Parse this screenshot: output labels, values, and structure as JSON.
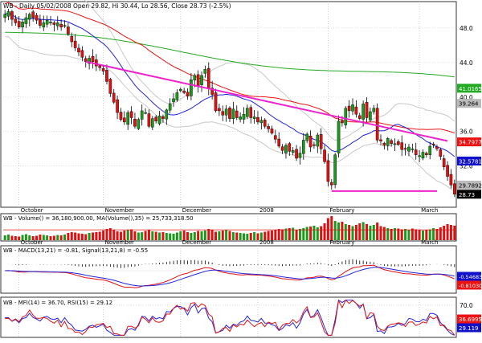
{
  "header": {
    "symbol": "WB",
    "line": "WB - Daily 05/02/2008 Open 29.82, Hi 30.44, Lo 28.56, Close 28.73 (-2.5%)"
  },
  "chart_data": [
    {
      "type": "candlestick",
      "panel": "price",
      "x_labels": [
        "October",
        "November",
        "December",
        "2008",
        "February",
        "March"
      ],
      "ylim": [
        27.5,
        50.5
      ],
      "y_ticks": [
        32.0,
        36.0,
        40.0,
        44.0,
        48.0
      ],
      "y_tick_labels": [
        "32.0",
        "36.0",
        "40.0",
        "44.0",
        "48.0"
      ],
      "last_values": [
        {
          "label": "41.0165",
          "value": 41.0165,
          "color": "#22aa22"
        },
        {
          "label": "39.264",
          "value": 39.264,
          "color": "#bbbbbb"
        },
        {
          "label": "34.7977",
          "value": 34.7977,
          "color": "#ee1111"
        },
        {
          "label": "32.5781",
          "value": 32.5781,
          "color": "#1111cc"
        },
        {
          "label": "29.7892",
          "value": 29.7892,
          "color": "#bbbbbb"
        },
        {
          "label": "28.73",
          "value": 28.73,
          "color": "#000000"
        }
      ],
      "closes": [
        49.6,
        49.9,
        49.0,
        48.6,
        48.1,
        48.7,
        49.2,
        49.6,
        49.2,
        48.9,
        48.3,
        48.6,
        48.9,
        48.7,
        48.4,
        48.6,
        48.1,
        48.3,
        47.3,
        46.4,
        45.7,
        45.2,
        44.6,
        44.1,
        44.5,
        44.1,
        43.6,
        43.4,
        43.0,
        41.8,
        40.4,
        39.4,
        38.2,
        37.4,
        37.1,
        38.2,
        37.6,
        36.6,
        37.4,
        38.4,
        38.2,
        36.6,
        37.5,
        37.2,
        37.8,
        37.5,
        38.5,
        39.2,
        39.8,
        40.5,
        40.9,
        40.5,
        40.1,
        42.0,
        42.5,
        41.3,
        42.5,
        43.2,
        41.0,
        40.3,
        38.4,
        38.4,
        37.9,
        38.6,
        37.5,
        38.6,
        37.6,
        37.7,
        38.0,
        38.7,
        37.6,
        37.7,
        37.1,
        37.3,
        36.6,
        36.3,
        35.8,
        35.1,
        34.3,
        33.8,
        34.4,
        33.7,
        33.8,
        32.9,
        33.5,
        35.0,
        35.7,
        34.2,
        34.4,
        35.6,
        34.0,
        32.5,
        30.2,
        29.8,
        33.3,
        37.2,
        37.0,
        38.7,
        38.4,
        39.1,
        38.0,
        37.5,
        39.2,
        37.6,
        38.3,
        38.7,
        35.0,
        34.9,
        34.4,
        35.2,
        34.6,
        34.6,
        34.5,
        33.9,
        34.0,
        34.2,
        34.0,
        33.3,
        33.2,
        33.6,
        33.3,
        34.3,
        34.5,
        34.0,
        33.1,
        31.9,
        30.8,
        29.8,
        28.73
      ],
      "overlays": [
        {
          "name": "MA 200",
          "color": "#22aa22"
        },
        {
          "name": "MA 50",
          "color": "#ee1111"
        },
        {
          "name": "MA 20",
          "color": "#2222dd"
        },
        {
          "name": "Bollinger",
          "color": "#bbbbbb"
        }
      ],
      "trendlines": [
        {
          "points": [
            [
              23,
              44.1
            ],
            [
              126,
              34.9
            ]
          ],
          "color": "#ee22cc"
        },
        {
          "points": [
            [
              93,
              29.1
            ],
            [
              123,
              29.1
            ]
          ],
          "color": "#ee22cc"
        }
      ]
    },
    {
      "type": "bar",
      "panel": "volume",
      "label": "WB - Volume() = 36,180,900.00,  MA(Volume(),35) = 25,733,318.50",
      "x_labels": [
        "October",
        "November",
        "December",
        "2008",
        "February",
        "March"
      ],
      "values_millions": [
        12,
        14,
        11,
        10,
        9,
        13,
        15,
        12,
        10,
        11,
        14,
        13,
        12,
        10,
        11,
        13,
        12,
        14,
        18,
        20,
        19,
        17,
        16,
        15,
        18,
        19,
        20,
        21,
        24,
        28,
        30,
        26,
        22,
        21,
        24,
        25,
        27,
        22,
        19,
        20,
        23,
        25,
        22,
        21,
        19,
        20,
        18,
        17,
        16,
        19,
        22,
        24,
        20,
        18,
        20,
        23,
        22,
        24,
        28,
        26,
        21,
        22,
        24,
        26,
        23,
        20,
        19,
        18,
        17,
        16,
        18,
        20,
        17,
        19,
        21,
        23,
        24,
        26,
        28,
        27,
        29,
        30,
        31,
        26,
        28,
        30,
        33,
        34,
        36,
        32,
        35,
        42,
        55,
        60,
        48,
        44,
        46,
        40,
        38,
        35,
        38,
        42,
        45,
        40,
        36,
        38,
        44,
        35,
        33,
        30,
        28,
        30,
        29,
        27,
        28,
        26,
        29,
        27,
        25,
        24,
        26,
        27,
        30,
        28,
        32,
        36,
        40,
        38,
        36.18
      ],
      "ma35_millions": 25.73
    },
    {
      "type": "line",
      "panel": "macd",
      "label": "WB - MACD(13,21) = -0.81,  Signal(13,21,8) = -0.55",
      "x_labels": [
        "October",
        "November",
        "December",
        "2008",
        "February",
        "March"
      ],
      "last_values": [
        {
          "label": "-0.546835",
          "value": -0.546835,
          "color": "#1111cc"
        },
        {
          "label": "-0.810307",
          "value": -0.810307,
          "color": "#ee1111"
        }
      ],
      "series": [
        {
          "name": "MACD",
          "color": "#ee1111"
        },
        {
          "name": "Signal",
          "color": "#2222dd"
        }
      ]
    },
    {
      "type": "line",
      "panel": "oscillators",
      "label": "WB - MFI(14) = 36.70,  RSI(15) = 29.12",
      "x_labels": [
        "October",
        "November",
        "December",
        "2008",
        "February",
        "March"
      ],
      "y_tick_labels": [
        "70.0"
      ],
      "last_values": [
        {
          "label": "36.6995",
          "value": 36.6995,
          "color": "#ee1111"
        },
        {
          "label": "29.119",
          "value": 29.119,
          "color": "#1111cc"
        }
      ],
      "series": [
        {
          "name": "MFI(14)",
          "color": "#ee1111"
        },
        {
          "name": "RSI(15)",
          "color": "#2222dd"
        }
      ]
    }
  ]
}
